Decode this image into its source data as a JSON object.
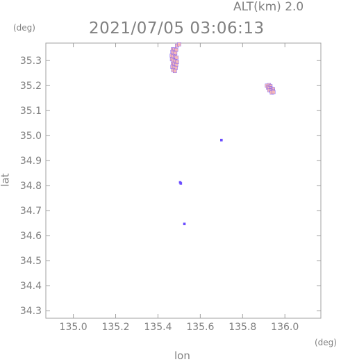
{
  "header": {
    "altitude": "ALT(km) 2.0",
    "timestamp": "2021/07/05 03:06:13"
  },
  "chart_data": {
    "type": "scatter",
    "title": "",
    "xlabel": "lon",
    "ylabel": "lat",
    "xunit": "(deg)",
    "yunit": "(deg)",
    "xlim": [
      134.87,
      136.17
    ],
    "ylim": [
      34.27,
      35.37
    ],
    "xticks": [
      "135.0",
      "135.2",
      "135.4",
      "135.6",
      "135.8",
      "136.0"
    ],
    "yticks": [
      "34.3",
      "34.4",
      "34.5",
      "34.6",
      "34.7",
      "34.8",
      "34.9",
      "35.0",
      "35.1",
      "35.2",
      "35.3"
    ],
    "grid": false,
    "colors": {
      "frame": "#a0a0a0",
      "text": "#808080",
      "echo_fill": "#f4b8b8",
      "echo_edge": "#6a4cff"
    },
    "clusters": [
      {
        "name": "",
        "cells": [
          [
            135.47,
            35.345
          ],
          [
            135.478,
            35.345
          ],
          [
            135.486,
            35.343
          ],
          [
            135.468,
            35.335
          ],
          [
            135.474,
            35.332
          ],
          [
            135.482,
            35.33
          ],
          [
            135.465,
            35.32
          ],
          [
            135.472,
            35.318
          ],
          [
            135.48,
            35.315
          ],
          [
            135.488,
            35.312
          ],
          [
            135.466,
            35.305
          ],
          [
            135.474,
            35.3
          ],
          [
            135.482,
            35.298
          ],
          [
            135.49,
            35.295
          ],
          [
            135.47,
            35.288
          ],
          [
            135.478,
            35.285
          ],
          [
            135.486,
            35.282
          ],
          [
            135.468,
            35.275
          ],
          [
            135.476,
            35.272
          ],
          [
            135.484,
            35.27
          ],
          [
            135.472,
            35.262
          ],
          [
            135.48,
            35.258
          ],
          [
            135.49,
            35.36
          ],
          [
            135.5,
            35.365
          ]
        ]
      },
      {
        "name": "",
        "cells": [
          [
            135.915,
            35.2
          ],
          [
            135.925,
            35.202
          ],
          [
            135.932,
            35.198
          ],
          [
            135.92,
            35.192
          ],
          [
            135.928,
            35.19
          ],
          [
            135.936,
            35.188
          ],
          [
            135.944,
            35.186
          ],
          [
            135.926,
            35.182
          ],
          [
            135.934,
            35.18
          ],
          [
            135.942,
            35.178
          ],
          [
            135.938,
            35.172
          ],
          [
            135.946,
            35.174
          ]
        ]
      },
      {
        "name": "",
        "cells": [
          [
            135.505,
            34.813
          ],
          [
            135.508,
            34.809
          ]
        ]
      },
      {
        "name": "",
        "cells": [
          [
            135.525,
            34.647
          ]
        ]
      },
      {
        "name": "",
        "cells": [
          [
            135.7,
            34.982
          ]
        ]
      }
    ]
  }
}
